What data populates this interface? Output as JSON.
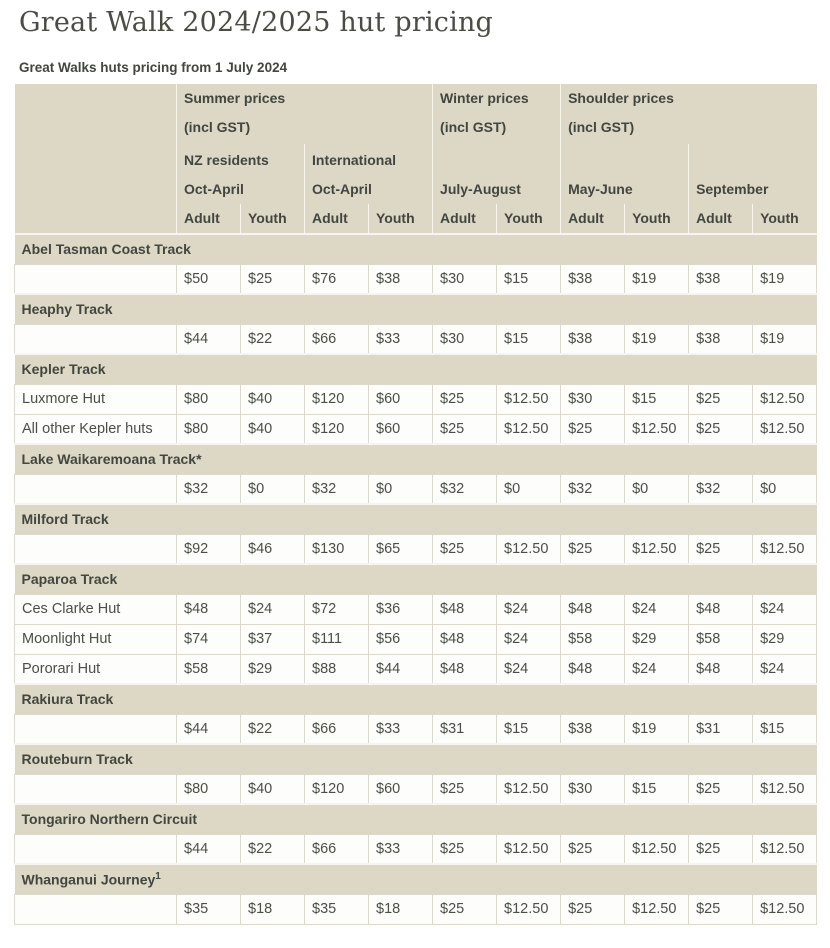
{
  "page": {
    "title": "Great Walk 2024/2025 hut pricing",
    "caption": "Great Walks huts pricing from 1 July 2024"
  },
  "colors": {
    "header_beige": "#ddd8c6",
    "light_divider": "#f7f5ec",
    "cell_border": "#dbd8cc",
    "text_dark": "#42463f",
    "text_body": "#4b4e46"
  },
  "table": {
    "header": {
      "price_groups": [
        {
          "label": "Summer prices",
          "sub": "(incl GST)",
          "colspan": 4
        },
        {
          "label": "Winter prices",
          "sub": "(incl GST)",
          "colspan": 2
        },
        {
          "label": "Shoulder prices",
          "sub": "(incl GST)",
          "colspan": 4
        }
      ],
      "season_groups": [
        {
          "line1": "NZ residents",
          "line2": "Oct-April",
          "colspan": 2
        },
        {
          "line1": "International",
          "line2": "Oct-April",
          "colspan": 2
        },
        {
          "line1": "",
          "line2": "July-August",
          "colspan": 2
        },
        {
          "line1": "",
          "line2": "May-June",
          "colspan": 2
        },
        {
          "line1": "",
          "line2": "September",
          "colspan": 2
        }
      ],
      "age_labels": [
        "Adult",
        "Youth",
        "Adult",
        "Youth",
        "Adult",
        "Youth",
        "Adult",
        "Youth",
        "Adult",
        "Youth"
      ]
    },
    "groups": [
      {
        "track": "Abel Tasman Coast Track",
        "rows": [
          {
            "hut": "",
            "prices": [
              "$50",
              "$25",
              "$76",
              "$38",
              "$30",
              "$15",
              "$38",
              "$19",
              "$38",
              "$19"
            ]
          }
        ]
      },
      {
        "track": "Heaphy Track",
        "rows": [
          {
            "hut": "",
            "prices": [
              "$44",
              "$22",
              "$66",
              "$33",
              "$30",
              "$15",
              "$38",
              "$19",
              "$38",
              "$19"
            ]
          }
        ]
      },
      {
        "track": "Kepler Track",
        "rows": [
          {
            "hut": "Luxmore Hut",
            "prices": [
              "$80",
              "$40",
              "$120",
              "$60",
              "$25",
              "$12.50",
              "$30",
              "$15",
              "$25",
              "$12.50"
            ]
          },
          {
            "hut": "All other Kepler huts",
            "prices": [
              "$80",
              "$40",
              "$120",
              "$60",
              "$25",
              "$12.50",
              "$25",
              "$12.50",
              "$25",
              "$12.50"
            ]
          }
        ]
      },
      {
        "track": "Lake Waikaremoana Track*",
        "rows": [
          {
            "hut": "",
            "prices": [
              "$32",
              "$0",
              "$32",
              "$0",
              "$32",
              "$0",
              "$32",
              "$0",
              "$32",
              "$0"
            ]
          }
        ]
      },
      {
        "track": "Milford Track",
        "rows": [
          {
            "hut": "",
            "prices": [
              "$92",
              "$46",
              "$130",
              "$65",
              "$25",
              "$12.50",
              "$25",
              "$12.50",
              "$25",
              "$12.50"
            ]
          }
        ]
      },
      {
        "track": "Paparoa Track",
        "rows": [
          {
            "hut": "Ces Clarke Hut",
            "prices": [
              "$48",
              "$24",
              "$72",
              "$36",
              "$48",
              "$24",
              "$48",
              "$24",
              "$48",
              "$24"
            ]
          },
          {
            "hut": "Moonlight Hut",
            "prices": [
              "$74",
              "$37",
              "$111",
              "$56",
              "$48",
              "$24",
              "$58",
              "$29",
              "$58",
              "$29"
            ]
          },
          {
            "hut": "Pororari Hut",
            "prices": [
              "$58",
              "$29",
              "$88",
              "$44",
              "$48",
              "$24",
              "$48",
              "$24",
              "$48",
              "$24"
            ]
          }
        ]
      },
      {
        "track": "Rakiura Track",
        "rows": [
          {
            "hut": "",
            "prices": [
              "$44",
              "$22",
              "$66",
              "$33",
              "$31",
              "$15",
              "$38",
              "$19",
              "$31",
              "$15"
            ]
          }
        ]
      },
      {
        "track": "Routeburn Track",
        "rows": [
          {
            "hut": "",
            "prices": [
              "$80",
              "$40",
              "$120",
              "$60",
              "$25",
              "$12.50",
              "$30",
              "$15",
              "$25",
              "$12.50"
            ]
          }
        ]
      },
      {
        "track": "Tongariro Northern Circuit",
        "rows": [
          {
            "hut": "",
            "prices": [
              "$44",
              "$22",
              "$66",
              "$33",
              "$25",
              "$12.50",
              "$25",
              "$12.50",
              "$25",
              "$12.50"
            ]
          }
        ]
      },
      {
        "track": "Whanganui Journey",
        "sup": "1",
        "rows": [
          {
            "hut": "",
            "prices": [
              "$35",
              "$18",
              "$35",
              "$18",
              "$25",
              "$12.50",
              "$25",
              "$12.50",
              "$25",
              "$12.50"
            ]
          }
        ]
      }
    ]
  }
}
